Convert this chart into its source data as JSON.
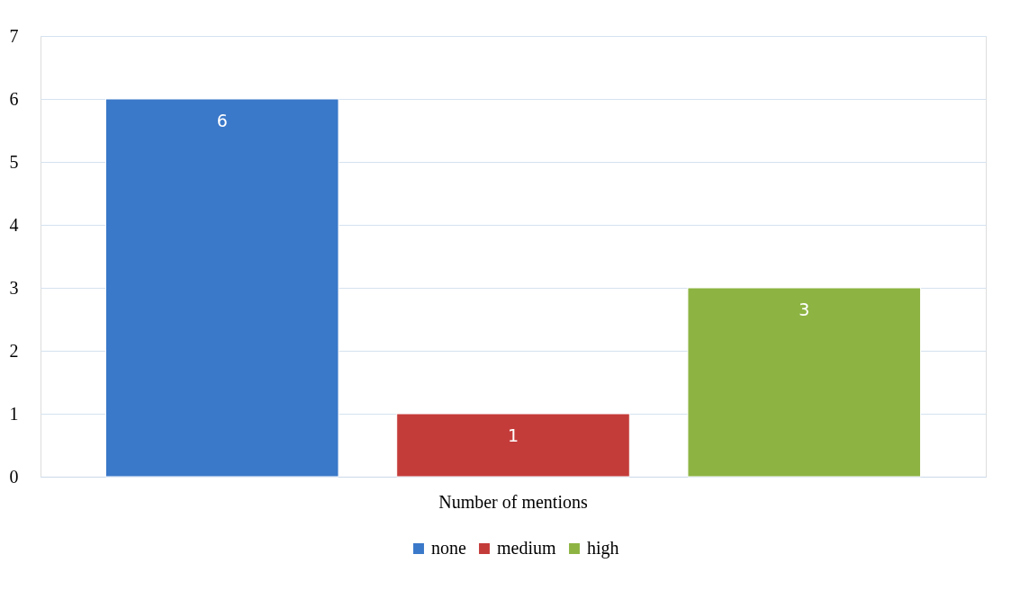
{
  "chart_data": {
    "type": "bar",
    "categories": [
      "Number of mentions"
    ],
    "series": [
      {
        "name": "none",
        "color": "#3a78c9",
        "values": [
          6
        ]
      },
      {
        "name": "medium",
        "color": "#c43c3a",
        "values": [
          1
        ]
      },
      {
        "name": "high",
        "color": "#8db443",
        "values": [
          3
        ]
      }
    ],
    "ylim": [
      0,
      7
    ],
    "yticks": [
      0,
      1,
      2,
      3,
      4,
      5,
      6,
      7
    ],
    "grid": "y",
    "legend": "bottom",
    "data_labels": true
  }
}
